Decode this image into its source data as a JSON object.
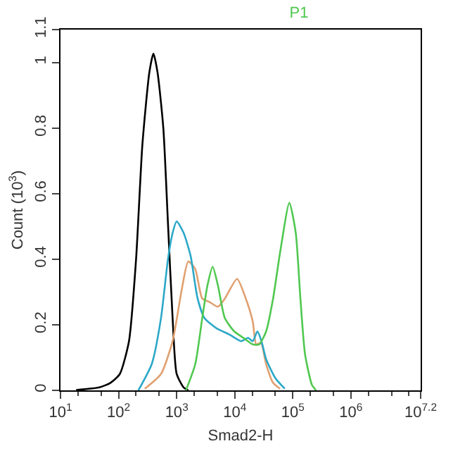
{
  "chart_data": {
    "type": "line",
    "title": "P1",
    "xlabel": "Smad2-H",
    "ylabel": "Count (10$^{3}$)",
    "log": "x",
    "xlim": [
      10,
      15848932
    ],
    "ylim": [
      0,
      1.1
    ],
    "xticks": [
      {
        "value": 10,
        "label": "10$^{1}$"
      },
      {
        "value": 100,
        "label": "10$^{2}$"
      },
      {
        "value": 1000,
        "label": "10$^{3}$"
      },
      {
        "value": 10000,
        "label": "10$^{4}$"
      },
      {
        "value": 100000,
        "label": "10$^{5}$"
      },
      {
        "value": 1000000,
        "label": "10$^{6}$"
      },
      {
        "value": 15848932,
        "label": "10$^{7.2}$"
      }
    ],
    "yticks": [
      0,
      0.2,
      0.4,
      0.6,
      0.8,
      1,
      1.1
    ],
    "marker": "none",
    "line_style": "solid",
    "series": [
      {
        "color": "#000000",
        "x": [
          18.6,
          46.8,
          72.4,
          105,
          151,
          200,
          257,
          339,
          398,
          468,
          589,
          708,
          851,
          1000,
          1318,
          1585
        ],
        "values": [
          0.001,
          0.009,
          0.023,
          0.05,
          0.15,
          0.4,
          0.75,
          0.97,
          1.027,
          0.97,
          0.8,
          0.51,
          0.22,
          0.05,
          0.009,
          0
        ]
      },
      {
        "color": "#e0a070",
        "x": [
          282,
          537,
          851,
          1230,
          1585,
          2089,
          2754,
          3631,
          5129,
          6761,
          10960,
          15490,
          20420,
          23440,
          28180,
          34670,
          45710,
          60260
        ],
        "values": [
          0.005,
          0.05,
          0.15,
          0.31,
          0.393,
          0.37,
          0.28,
          0.27,
          0.255,
          0.28,
          0.34,
          0.28,
          0.21,
          0.14,
          0.145,
          0.08,
          0.023,
          0.005
        ]
      },
      {
        "color": "#2ca8c8",
        "x": [
          219,
          372,
          537,
          708,
          851,
          1000,
          1318,
          1738,
          2291,
          3020,
          4786,
          8128,
          12880,
          16980,
          20420,
          24550,
          28840,
          34670,
          50120,
          72440
        ],
        "values": [
          0,
          0.08,
          0.22,
          0.4,
          0.48,
          0.515,
          0.48,
          0.41,
          0.28,
          0.22,
          0.19,
          0.17,
          0.15,
          0.16,
          0.15,
          0.18,
          0.15,
          0.095,
          0.037,
          0.005
        ]
      },
      {
        "color": "#50c850",
        "x": [
          1445,
          2089,
          2754,
          3388,
          4169,
          5129,
          6761,
          9772,
          14130,
          20420,
          26300,
          34670,
          45710,
          60260,
          87100,
          112200,
          134900,
          162200,
          213800,
          251200
        ],
        "values": [
          0,
          0.08,
          0.22,
          0.32,
          0.377,
          0.32,
          0.22,
          0.18,
          0.16,
          0.14,
          0.14,
          0.18,
          0.28,
          0.42,
          0.572,
          0.48,
          0.28,
          0.11,
          0.016,
          0
        ]
      }
    ]
  }
}
